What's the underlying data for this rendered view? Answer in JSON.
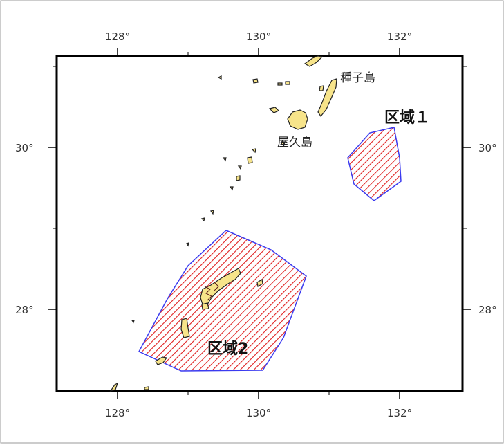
{
  "map": {
    "longitude_ticks": [
      "128°",
      "130°",
      "132°"
    ],
    "latitude_ticks": [
      "30°",
      "28°"
    ],
    "places": {
      "tanegashima": "種子島",
      "yakushima": "屋久島"
    },
    "zones": {
      "zone1": "区域１",
      "zone2": "区域2"
    },
    "colors": {
      "land_fill": "#f7e48a",
      "land_stroke": "#222222",
      "zone_outline": "#3b3bf0",
      "zone_hatch": "#e02020",
      "frame": "#000000"
    }
  }
}
